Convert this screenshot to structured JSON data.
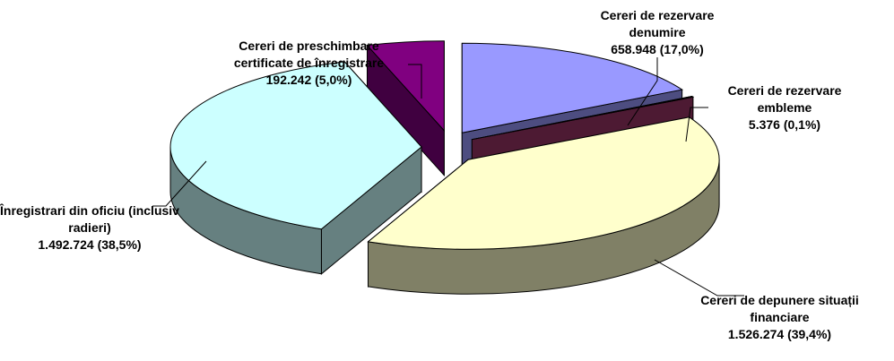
{
  "chart_data": {
    "type": "pie",
    "categories": [
      "Cereri de rezervare denumire",
      "Cereri de rezervare embleme",
      "Cereri de depunere situații financiare",
      "Înregistrari din oficiu (inclusiv radieri)",
      "Cereri de preschimbare certificate de înregistrare"
    ],
    "values": [
      658948,
      5376,
      1526274,
      1492724,
      192242
    ],
    "value_labels": [
      "658.948 (17,0%)",
      "5.376 (0,1%)",
      "1.526.274 (39,4%)",
      "1.492.724 (38,5%)",
      "192.242 (5,0%)"
    ],
    "colors": [
      "#9999ff",
      "#993366",
      "#ffffcc",
      "#ccffff",
      "#800080"
    ]
  }
}
